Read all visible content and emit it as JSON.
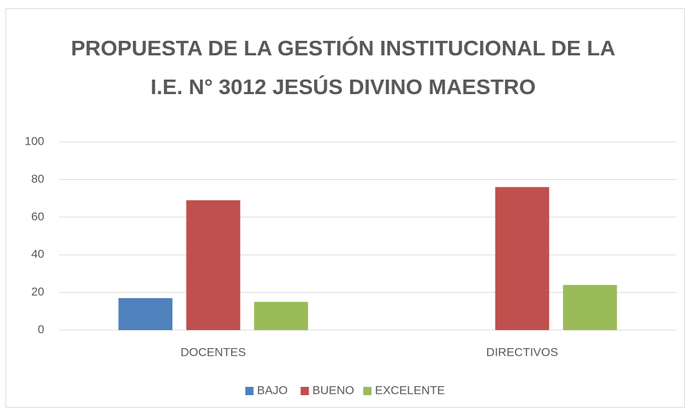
{
  "chart_data": {
    "type": "bar",
    "title": [
      "PROPUESTA DE LA GESTIÓN INSTITUCIONAL DE LA",
      "I.E. N° 3012 JESÚS DIVINO MAESTRO"
    ],
    "categories": [
      "DOCENTES",
      "DIRECTIVOS"
    ],
    "series": [
      {
        "name": "BAJO",
        "color": "#4f81bd",
        "values": [
          17,
          0
        ]
      },
      {
        "name": "BUENO",
        "color": "#c0504d",
        "values": [
          69,
          76
        ]
      },
      {
        "name": "EXCELENTE",
        "color": "#9bbb59",
        "values": [
          15,
          24
        ]
      }
    ],
    "ylim": [
      0,
      100
    ],
    "yticks": [
      0,
      20,
      40,
      60,
      80,
      100
    ],
    "grid": true,
    "legend": "bottom"
  }
}
